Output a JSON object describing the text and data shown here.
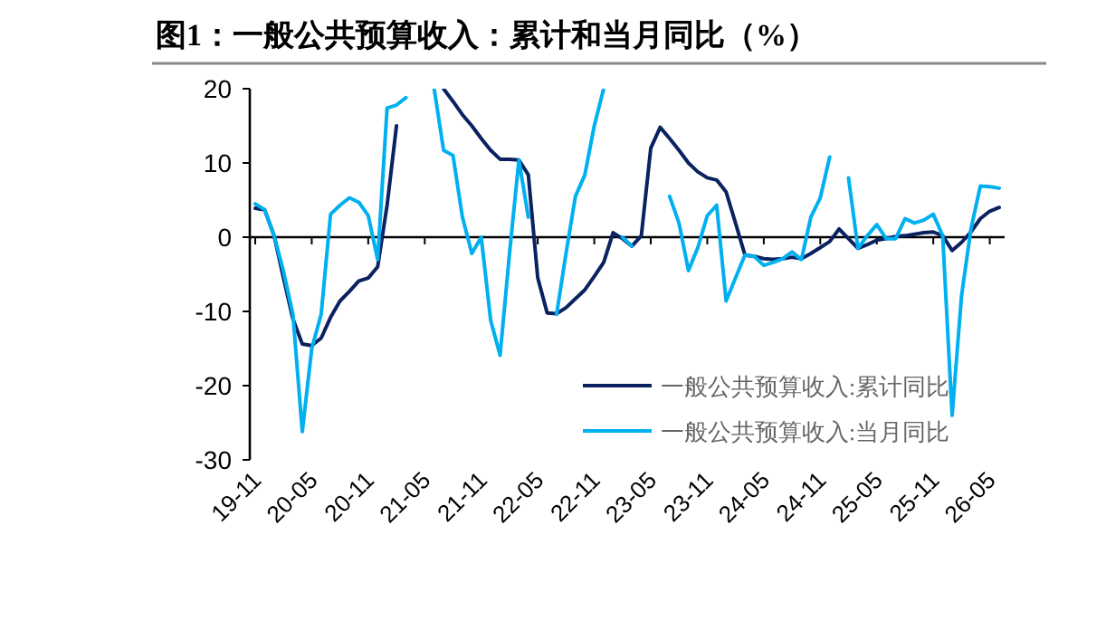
{
  "chart_data": {
    "type": "line",
    "title": "图1：一般公共预算收入：累计和当月同比（%）",
    "categories": [
      "19-11",
      null,
      null,
      null,
      null,
      null,
      "20-05",
      null,
      null,
      null,
      null,
      null,
      "20-11",
      null,
      null,
      null,
      null,
      null,
      "21-05",
      null,
      null,
      null,
      null,
      null,
      "21-11",
      null,
      null,
      null,
      null,
      null,
      "22-05",
      null,
      null,
      null,
      null,
      null,
      "22-11",
      null,
      null,
      null,
      null,
      null,
      "23-05",
      null,
      null,
      null,
      null,
      null,
      "23-11",
      null,
      null,
      null,
      null,
      null,
      "24-05",
      null,
      null,
      null,
      null,
      null,
      "24-11",
      null,
      null,
      null,
      null,
      null,
      "25-05",
      null,
      null,
      null,
      null,
      null,
      "25-11",
      null,
      null,
      null,
      null,
      null,
      "26-05",
      null
    ],
    "series": [
      {
        "name": "一般公共预算收入:累计同比",
        "color": "#0b2261",
        "values": [
          3.9,
          3.7,
          0.2,
          -5.5,
          -11,
          -14.4,
          -14.6,
          -13.6,
          -10.8,
          -8.6,
          -7.3,
          -5.9,
          -5.5,
          -4,
          4.3,
          15,
          null,
          null,
          null,
          null,
          20,
          18.3,
          16.5,
          15,
          13.3,
          11.7,
          10.5,
          10.5,
          10.4,
          8.4,
          -5.5,
          -10.2,
          -10.3,
          -9.5,
          -8.3,
          -7.1,
          -5.3,
          -3.4,
          0.6,
          -0.2,
          -1.2,
          0.2,
          12,
          14.8,
          13.3,
          11.7,
          10,
          8.8,
          8,
          7.7,
          6.1,
          1.9,
          -2.4,
          -2.6,
          -2.9,
          -3,
          -2.9,
          -2.7,
          -2.9,
          -2.2,
          -1.4,
          -0.6,
          1.1,
          -0.2,
          -1.5,
          -1,
          -0.4,
          -0.2,
          0.1,
          0.2,
          0.4,
          0.6,
          0.7,
          0.2,
          -1.8,
          -0.7,
          0.7,
          2.5,
          3.5,
          4
        ]
      },
      {
        "name": "一般公共预算收入:当月同比",
        "color": "#00b0f0",
        "values": [
          4.5,
          3.7,
          0.2,
          -4.6,
          -10.4,
          -26.2,
          -15,
          -10.4,
          3.1,
          4.3,
          5.3,
          4.7,
          2.9,
          -3,
          17.4,
          17.8,
          18.8,
          null,
          null,
          20,
          11.7,
          11,
          2.7,
          -2.2,
          0,
          -11.2,
          -15.9,
          -2.2,
          10.4,
          2.7,
          null,
          null,
          -10.4,
          -2.2,
          5.5,
          8.4,
          15,
          20,
          null,
          0,
          -1.2,
          null,
          null,
          null,
          5.5,
          1.9,
          -4.5,
          -1.4,
          2.9,
          4.3,
          -8.6,
          -5.5,
          -2.4,
          -2.6,
          -3.8,
          -3.4,
          -2.9,
          -2,
          -3,
          2.7,
          5.3,
          10.8,
          null,
          8,
          -1.5,
          0.2,
          1.7,
          -0.2,
          -0.2,
          2.5,
          1.9,
          2.3,
          3.1,
          0.2,
          -24,
          -7.9,
          1.1,
          6.9,
          6.8,
          6.6
        ]
      }
    ],
    "ylim": [
      -30,
      20
    ],
    "yticks": [
      -30,
      -20,
      -10,
      0,
      10,
      20
    ],
    "legend": "bottom right"
  }
}
